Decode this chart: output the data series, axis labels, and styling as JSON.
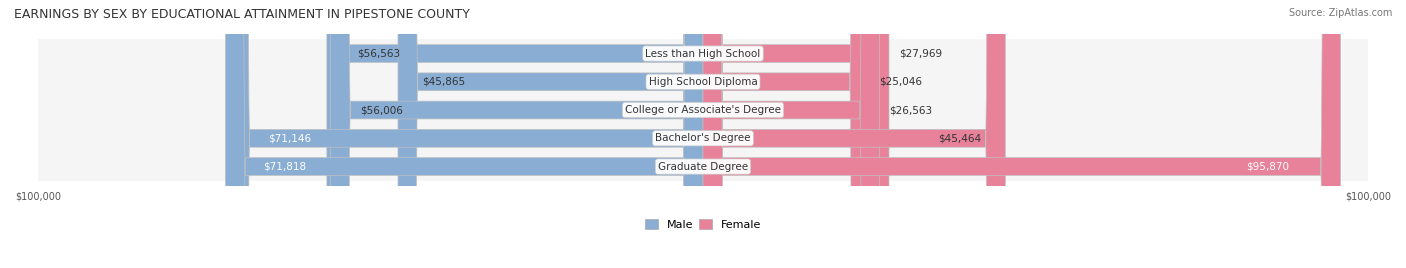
{
  "title": "EARNINGS BY SEX BY EDUCATIONAL ATTAINMENT IN PIPESTONE COUNTY",
  "source": "Source: ZipAtlas.com",
  "categories": [
    "Less than High School",
    "High School Diploma",
    "College or Associate's Degree",
    "Bachelor's Degree",
    "Graduate Degree"
  ],
  "male_values": [
    56563,
    45865,
    56006,
    71146,
    71818
  ],
  "female_values": [
    27969,
    25046,
    26563,
    45464,
    95870
  ],
  "male_labels": [
    "$56,563",
    "$45,865",
    "$56,006",
    "$71,146",
    "$71,818"
  ],
  "female_labels": [
    "$27,969",
    "$25,046",
    "$26,563",
    "$45,464",
    "$95,870"
  ],
  "x_max": 100000,
  "male_color": "#8aadd4",
  "female_color": "#e8829a",
  "male_color_dark": "#6a8fbf",
  "female_color_dark": "#d4607a",
  "row_bg_color": "#f0f0f0",
  "row_bg_alt": "#e8e8e8",
  "label_inside_threshold": 50000,
  "bg_color": "#ffffff",
  "title_fontsize": 9,
  "bar_label_fontsize": 7.5,
  "category_fontsize": 7.5,
  "legend_fontsize": 8,
  "axis_label_fontsize": 7
}
